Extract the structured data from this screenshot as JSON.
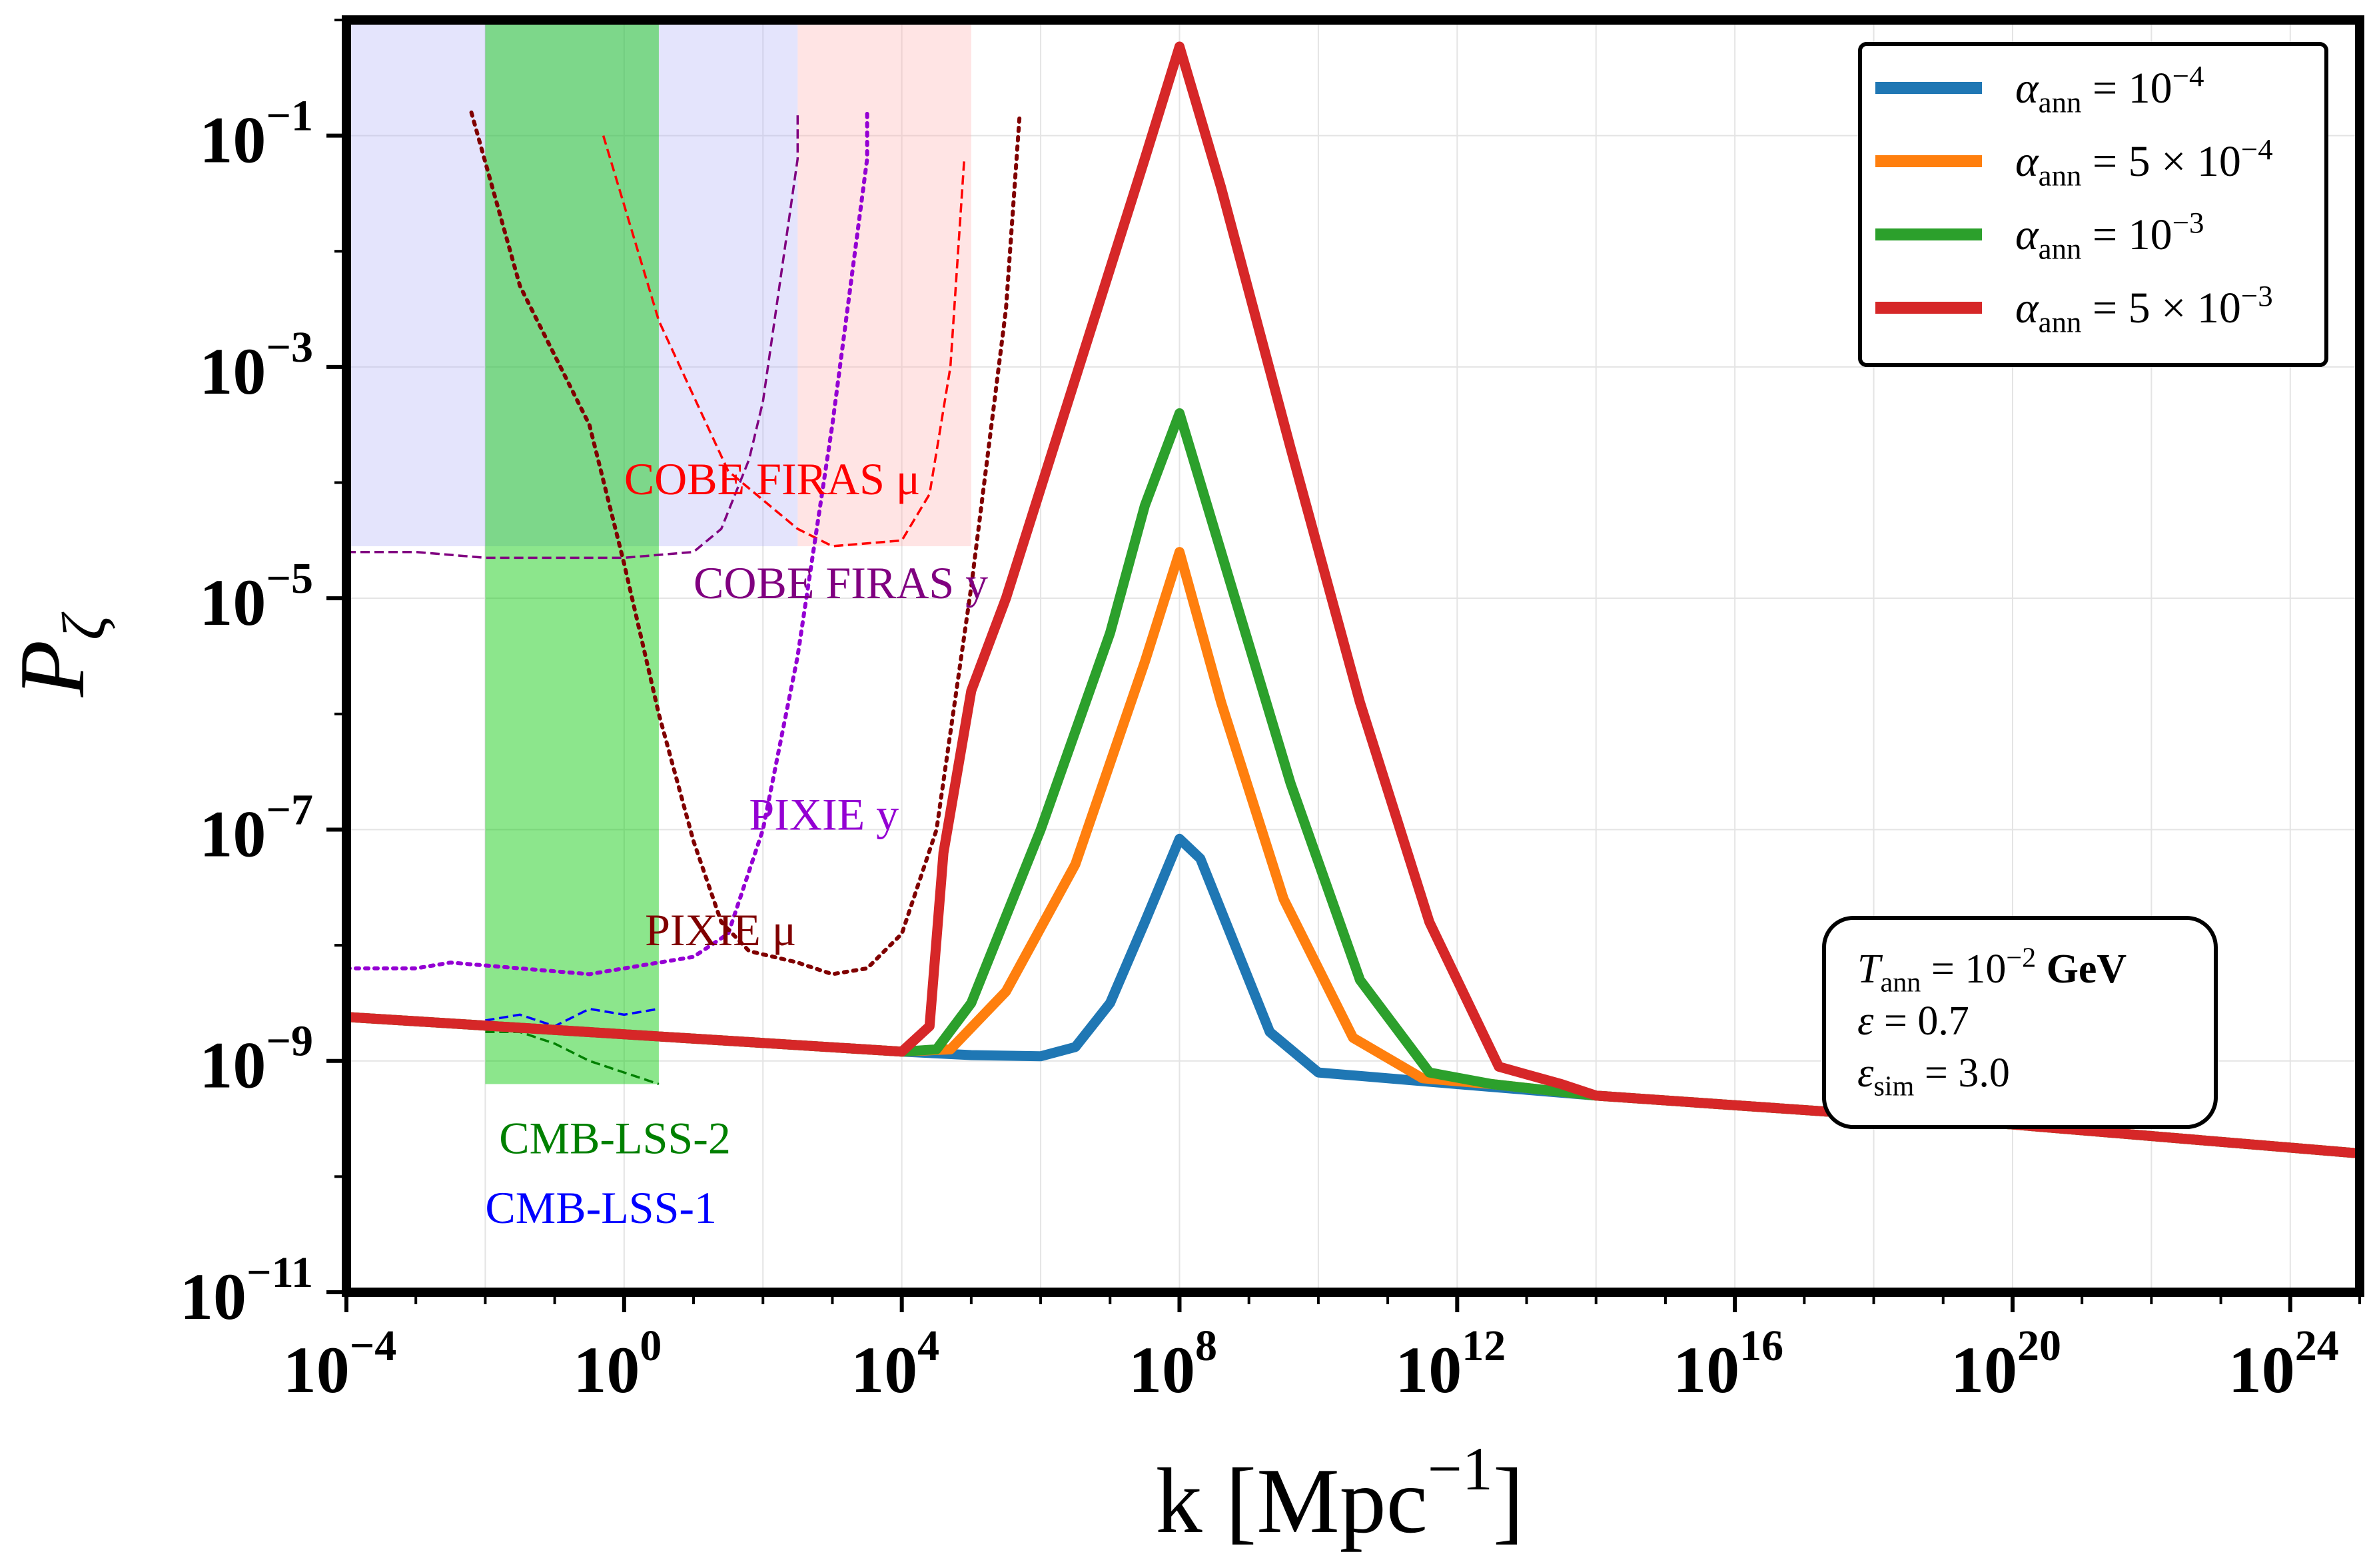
{
  "chart_data": {
    "type": "line",
    "xscale": "log",
    "yscale": "log",
    "xlim": [
      0.0001,
      1e+25
    ],
    "ylim": [
      1e-11,
      1.0
    ],
    "xlabel": {
      "main": "k [Mpc",
      "sup": "−1",
      "tail": "]"
    },
    "ylabel": {
      "main": "P",
      "sub": "ζ"
    },
    "grid": true,
    "legend_position": "top-right",
    "x_ticks": [
      {
        "exp": -4,
        "base": "10",
        "sup": "−4"
      },
      {
        "exp": 0,
        "base": "10",
        "sup": "0"
      },
      {
        "exp": 4,
        "base": "10",
        "sup": "4"
      },
      {
        "exp": 8,
        "base": "10",
        "sup": "8"
      },
      {
        "exp": 12,
        "base": "10",
        "sup": "12"
      },
      {
        "exp": 16,
        "base": "10",
        "sup": "16"
      },
      {
        "exp": 20,
        "base": "10",
        "sup": "20"
      },
      {
        "exp": 24,
        "base": "10",
        "sup": "24"
      }
    ],
    "y_ticks": [
      {
        "exp": -11,
        "base": "10",
        "sup": "−11"
      },
      {
        "exp": -9,
        "base": "10",
        "sup": "−9"
      },
      {
        "exp": -7,
        "base": "10",
        "sup": "−7"
      },
      {
        "exp": -5,
        "base": "10",
        "sup": "−5"
      },
      {
        "exp": -3,
        "base": "10",
        "sup": "−3"
      },
      {
        "exp": -1,
        "base": "10",
        "sup": "−1"
      }
    ],
    "series": [
      {
        "name": {
          "pre": "α",
          "sub": "ann",
          "eq": " = 10",
          "sup": "−4",
          "post": ""
        },
        "color": "#1f77b4",
        "points": [
          [
            -4,
            -8.62
          ],
          [
            4,
            -8.92
          ],
          [
            5,
            -8.95
          ],
          [
            6,
            -8.96
          ],
          [
            6.5,
            -8.88
          ],
          [
            7,
            -8.5
          ],
          [
            7.5,
            -7.8
          ],
          [
            8,
            -7.08
          ],
          [
            8.3,
            -7.25
          ],
          [
            8.8,
            -8.0
          ],
          [
            9.3,
            -8.75
          ],
          [
            10,
            -9.1
          ],
          [
            12,
            -9.2
          ],
          [
            13,
            -9.25
          ],
          [
            14,
            -9.3
          ],
          [
            20,
            -9.55
          ],
          [
            25,
            -9.8
          ]
        ]
      },
      {
        "name": {
          "pre": "α",
          "sub": "ann",
          "eq": " = 5 × 10",
          "sup": "−4",
          "post": ""
        },
        "color": "#ff7f0e",
        "points": [
          [
            -4,
            -8.62
          ],
          [
            4,
            -8.92
          ],
          [
            4.7,
            -8.9
          ],
          [
            5.5,
            -8.4
          ],
          [
            6.5,
            -7.3
          ],
          [
            7.5,
            -5.55
          ],
          [
            8,
            -4.6
          ],
          [
            8.6,
            -5.9
          ],
          [
            9.5,
            -7.6
          ],
          [
            10.5,
            -8.8
          ],
          [
            11.5,
            -9.15
          ],
          [
            12.5,
            -9.2
          ],
          [
            14,
            -9.3
          ],
          [
            20,
            -9.55
          ],
          [
            25,
            -9.8
          ]
        ]
      },
      {
        "name": {
          "pre": "α",
          "sub": "ann",
          "eq": " = 10",
          "sup": "−3",
          "post": ""
        },
        "color": "#2ca02c",
        "points": [
          [
            -4,
            -8.62
          ],
          [
            4,
            -8.92
          ],
          [
            4.5,
            -8.9
          ],
          [
            5,
            -8.5
          ],
          [
            6,
            -7.0
          ],
          [
            7,
            -5.3
          ],
          [
            7.5,
            -4.2
          ],
          [
            8,
            -3.4
          ],
          [
            8.7,
            -4.8
          ],
          [
            9.6,
            -6.6
          ],
          [
            10.6,
            -8.3
          ],
          [
            11.6,
            -9.1
          ],
          [
            12.5,
            -9.2
          ],
          [
            14,
            -9.3
          ],
          [
            20,
            -9.55
          ],
          [
            25,
            -9.8
          ]
        ]
      },
      {
        "name": {
          "pre": "α",
          "sub": "ann",
          "eq": " = 5 × 10",
          "sup": "−3",
          "post": ""
        },
        "color": "#d62728",
        "points": [
          [
            -4,
            -8.62
          ],
          [
            4,
            -8.92
          ],
          [
            4.4,
            -8.7
          ],
          [
            4.6,
            -7.2
          ],
          [
            5,
            -5.8
          ],
          [
            5.5,
            -5.0
          ],
          [
            6.5,
            -3.1
          ],
          [
            7.5,
            -1.2
          ],
          [
            8,
            -0.23
          ],
          [
            8.6,
            -1.45
          ],
          [
            9.6,
            -3.7
          ],
          [
            10.6,
            -5.9
          ],
          [
            11.6,
            -7.8
          ],
          [
            12.6,
            -9.05
          ],
          [
            13.5,
            -9.2
          ],
          [
            14,
            -9.3
          ],
          [
            20,
            -9.55
          ],
          [
            25,
            -9.8
          ]
        ]
      }
    ],
    "constraints": [
      {
        "name": "COBE FIRAS μ",
        "color": "#ff0000",
        "points": [
          [
            -0.3,
            -1.0
          ],
          [
            0.5,
            -2.6
          ],
          [
            1.5,
            -3.9
          ],
          [
            2.5,
            -4.4
          ],
          [
            3,
            -4.55
          ],
          [
            4,
            -4.5
          ],
          [
            4.4,
            -4.1
          ],
          [
            4.7,
            -3.0
          ],
          [
            4.9,
            -1.2
          ]
        ]
      },
      {
        "name": "COBE FIRAS y",
        "color": "#800080",
        "points": [
          [
            -4,
            -4.6
          ],
          [
            -3,
            -4.6
          ],
          [
            -2,
            -4.65
          ],
          [
            -1,
            -4.65
          ],
          [
            0,
            -4.65
          ],
          [
            1,
            -4.6
          ],
          [
            1.4,
            -4.4
          ],
          [
            1.8,
            -3.8
          ],
          [
            2,
            -3.3
          ],
          [
            2.5,
            -1.2
          ],
          [
            2.5,
            -0.8
          ]
        ]
      },
      {
        "name": "PIXIE y",
        "color": "#9400d3",
        "points": [
          [
            -4,
            -8.2
          ],
          [
            -3,
            -8.2
          ],
          [
            -2.5,
            -8.15
          ],
          [
            -1.5,
            -8.2
          ],
          [
            -0.5,
            -8.25
          ],
          [
            0,
            -8.2
          ],
          [
            0.5,
            -8.15
          ],
          [
            1,
            -8.1
          ],
          [
            1.5,
            -7.9
          ],
          [
            2,
            -7.0
          ],
          [
            2.5,
            -5.5
          ],
          [
            3,
            -3.5
          ],
          [
            3.5,
            -1.2
          ],
          [
            3.5,
            -0.8
          ]
        ]
      },
      {
        "name": "PIXIE μ",
        "color": "#800000",
        "points": [
          [
            -2.2,
            -0.8
          ],
          [
            -1.5,
            -2.3
          ],
          [
            -0.5,
            -3.5
          ],
          [
            0,
            -4.7
          ],
          [
            0.5,
            -6.0
          ],
          [
            1,
            -7.1
          ],
          [
            1.4,
            -7.8
          ],
          [
            1.8,
            -8.05
          ],
          [
            2.5,
            -8.15
          ],
          [
            3,
            -8.25
          ],
          [
            3.5,
            -8.2
          ],
          [
            4,
            -7.9
          ],
          [
            4.5,
            -7.0
          ],
          [
            5,
            -4.9
          ],
          [
            5.5,
            -2.5
          ],
          [
            5.7,
            -0.8
          ]
        ]
      },
      {
        "name": "CMB-LSS-2",
        "color": "#008000",
        "points": [
          [
            -2,
            -8.75
          ],
          [
            -1.5,
            -8.75
          ],
          [
            -1,
            -8.85
          ],
          [
            -0.5,
            -9.0
          ],
          [
            0,
            -9.1
          ],
          [
            0.5,
            -9.2
          ]
        ]
      },
      {
        "name": "CMB-LSS-1",
        "color": "#0000ff",
        "points": [
          [
            -2,
            -8.65
          ],
          [
            -1.5,
            -8.6
          ],
          [
            -1,
            -8.7
          ],
          [
            -0.5,
            -8.55
          ],
          [
            0,
            -8.6
          ],
          [
            0.5,
            -8.55
          ]
        ]
      }
    ],
    "shaded_regions": [
      {
        "color": "#b3b3f5",
        "alpha": 0.35,
        "x": [
          -4,
          2.5
        ],
        "y": [
          -4.55,
          0
        ]
      },
      {
        "color": "#ffb3b3",
        "alpha": 0.35,
        "x": [
          2.5,
          5.0
        ],
        "y": [
          -4.55,
          0
        ]
      },
      {
        "color": "#00c800",
        "alpha": 0.45,
        "x": [
          -2,
          0.5
        ],
        "y": [
          -9.2,
          0
        ]
      }
    ],
    "region_labels": [
      {
        "text": "COBE FIRAS μ",
        "color": "#ff0000",
        "x": 0.0,
        "y": -4.1
      },
      {
        "text": "COBE FIRAS y",
        "color": "#800080",
        "x": 1.0,
        "y": -5.0
      },
      {
        "text": "PIXIE y",
        "color": "#9400d3",
        "x": 1.8,
        "y": -7.0
      },
      {
        "text": "PIXIE μ",
        "color": "#800000",
        "x": 0.3,
        "y": -8.0
      },
      {
        "text": "CMB-LSS-2",
        "color": "#008000",
        "x": -1.8,
        "y": -9.8
      },
      {
        "text": "CMB-LSS-1",
        "color": "#0000ff",
        "x": -2.0,
        "y": -10.4
      }
    ],
    "parameters": [
      {
        "pre": "T",
        "sub": "ann",
        "eq": " = 10",
        "sup": "−2",
        "post": " GeV",
        "bold_post": true
      },
      {
        "pre": "ε",
        "sub": "",
        "eq": " = 0.7",
        "sup": "",
        "post": ""
      },
      {
        "pre": "ε",
        "sub": "sim",
        "eq": " = 3.0",
        "sup": "",
        "post": ""
      }
    ]
  }
}
